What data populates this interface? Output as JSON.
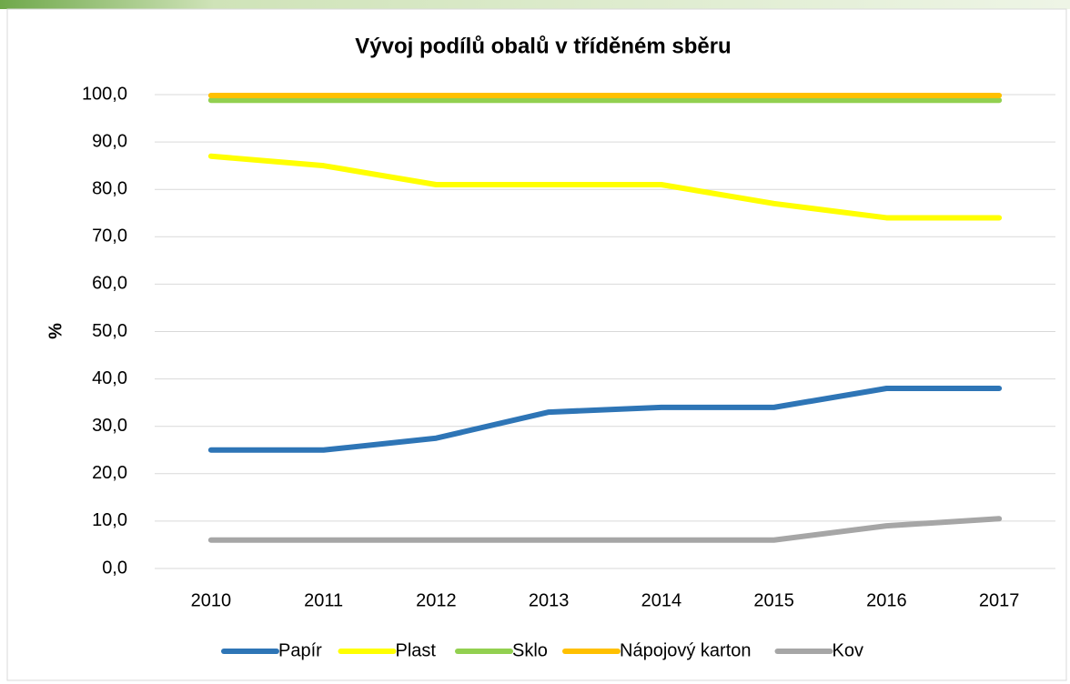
{
  "chart_data": {
    "type": "line",
    "title": "Vývoj podílů obalů v tříděném sběru",
    "y_label": "%",
    "categories": [
      "2010",
      "2011",
      "2012",
      "2013",
      "2014",
      "2015",
      "2016",
      "2017"
    ],
    "series": [
      {
        "name": "Papír",
        "color": "#2e75b6",
        "values": [
          25,
          25,
          27.5,
          33,
          34,
          34,
          38,
          38
        ]
      },
      {
        "name": "Plast",
        "color": "#ffff00",
        "values": [
          87,
          85,
          81,
          81,
          81,
          77,
          74,
          74
        ]
      },
      {
        "name": "Sklo",
        "color": "#92d050",
        "values": [
          98.8,
          98.8,
          98.8,
          98.8,
          98.8,
          98.8,
          98.8,
          98.8
        ]
      },
      {
        "name": "Nápojový karton",
        "color": "#ffc000",
        "values": [
          99.8,
          99.8,
          99.8,
          99.8,
          99.8,
          99.8,
          99.8,
          99.8
        ]
      },
      {
        "name": "Kov",
        "color": "#a6a6a6",
        "values": [
          6,
          6,
          6,
          6,
          6,
          6,
          9,
          10.5
        ]
      }
    ],
    "ylim": [
      0,
      100
    ],
    "yticks": [
      {
        "value": 0,
        "label": "0,0"
      },
      {
        "value": 10,
        "label": "10,0"
      },
      {
        "value": 20,
        "label": "20,0"
      },
      {
        "value": 30,
        "label": "30,0"
      },
      {
        "value": 40,
        "label": "40,0"
      },
      {
        "value": 50,
        "label": "50,0"
      },
      {
        "value": 60,
        "label": "60,0"
      },
      {
        "value": 70,
        "label": "70,0"
      },
      {
        "value": 80,
        "label": "80,0"
      },
      {
        "value": 90,
        "label": "90,0"
      },
      {
        "value": 100,
        "label": "100,0"
      }
    ],
    "grid": true,
    "legend": "bottom"
  }
}
